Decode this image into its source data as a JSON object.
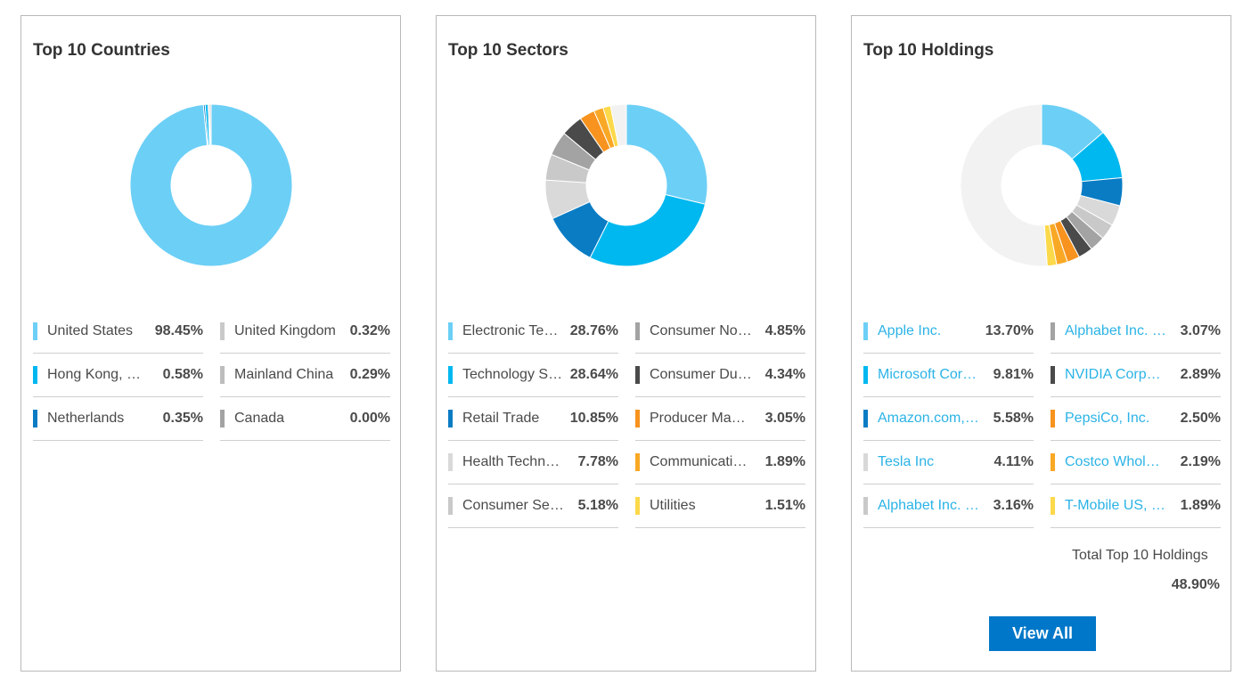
{
  "chart_data": [
    {
      "type": "pie",
      "title": "Top 10 Countries",
      "series": [
        {
          "name": "United States",
          "value": "98.45%",
          "num": 98.45,
          "color": "#6ccff6"
        },
        {
          "name": "United Kingdom",
          "value": "0.32%",
          "num": 0.32,
          "color": "#c9c9c9"
        },
        {
          "name": "Hong Kong, China",
          "value": "0.58%",
          "num": 0.58,
          "color": "#00b8f0"
        },
        {
          "name": "Mainland China",
          "value": "0.29%",
          "num": 0.29,
          "color": "#bdbdbd"
        },
        {
          "name": "Netherlands",
          "value": "0.35%",
          "num": 0.35,
          "color": "#0a7cc4"
        },
        {
          "name": "Canada",
          "value": "0.00%",
          "num": 0.0,
          "color": "#a3a3a3"
        }
      ],
      "chart_order": [
        "United States",
        "Netherlands",
        "Hong Kong, China",
        "Mainland China",
        "United Kingdom",
        "Canada"
      ]
    },
    {
      "type": "pie",
      "title": "Top 10 Sectors",
      "series": [
        {
          "name": "Electronic Technology",
          "value": "28.76%",
          "num": 28.76,
          "color": "#6ccff6"
        },
        {
          "name": "Consumer Non-Durables",
          "value": "4.85%",
          "num": 4.85,
          "color": "#a3a3a3"
        },
        {
          "name": "Technology Services",
          "value": "28.64%",
          "num": 28.64,
          "color": "#00b8f0"
        },
        {
          "name": "Consumer Durables",
          "value": "4.34%",
          "num": 4.34,
          "color": "#4a4a4a"
        },
        {
          "name": "Retail Trade",
          "value": "10.85%",
          "num": 10.85,
          "color": "#0a7cc4"
        },
        {
          "name": "Producer Manufacturing",
          "value": "3.05%",
          "num": 3.05,
          "color": "#f7931e"
        },
        {
          "name": "Health Technology",
          "value": "7.78%",
          "num": 7.78,
          "color": "#d9d9d9"
        },
        {
          "name": "Communications",
          "value": "1.89%",
          "num": 1.89,
          "color": "#f9a825"
        },
        {
          "name": "Consumer Services",
          "value": "5.18%",
          "num": 5.18,
          "color": "#c9c9c9"
        },
        {
          "name": "Utilities",
          "value": "1.51%",
          "num": 1.51,
          "color": "#fcd94a"
        }
      ],
      "chart_order": [
        "Electronic Technology",
        "Technology Services",
        "Retail Trade",
        "Health Technology",
        "Consumer Services",
        "Consumer Non-Durables",
        "Consumer Durables",
        "Producer Manufacturing",
        "Communications",
        "Utilities"
      ],
      "remainder_color": "#f2f2f2"
    },
    {
      "type": "pie",
      "title": "Top 10 Holdings",
      "series": [
        {
          "name": "Apple Inc.",
          "value": "13.70%",
          "num": 13.7,
          "color": "#6ccff6"
        },
        {
          "name": "Alphabet Inc. Class C",
          "value": "3.07%",
          "num": 3.07,
          "color": "#a3a3a3"
        },
        {
          "name": "Microsoft Corporation",
          "value": "9.81%",
          "num": 9.81,
          "color": "#00b8f0"
        },
        {
          "name": "NVIDIA Corporation",
          "value": "2.89%",
          "num": 2.89,
          "color": "#4a4a4a"
        },
        {
          "name": "Amazon.com, Inc.",
          "value": "5.58%",
          "num": 5.58,
          "color": "#0a7cc4"
        },
        {
          "name": "PepsiCo, Inc.",
          "value": "2.50%",
          "num": 2.5,
          "color": "#f7931e"
        },
        {
          "name": "Tesla Inc",
          "value": "4.11%",
          "num": 4.11,
          "color": "#d9d9d9"
        },
        {
          "name": "Costco Wholesale Corporation",
          "value": "2.19%",
          "num": 2.19,
          "color": "#f9a825"
        },
        {
          "name": "Alphabet Inc. Class A",
          "value": "3.16%",
          "num": 3.16,
          "color": "#c9c9c9"
        },
        {
          "name": "T-Mobile US, Inc.",
          "value": "1.89%",
          "num": 1.89,
          "color": "#fcd94a"
        }
      ],
      "chart_order": [
        "Apple Inc.",
        "Microsoft Corporation",
        "Amazon.com, Inc.",
        "Tesla Inc",
        "Alphabet Inc. Class A",
        "Alphabet Inc. Class C",
        "NVIDIA Corporation",
        "PepsiCo, Inc.",
        "Costco Wholesale Corporation",
        "T-Mobile US, Inc."
      ],
      "remainder_color": "#f2f2f2",
      "total_label": "Total Top 10 Holdings",
      "total_value": "48.90%"
    }
  ],
  "view_all_label": "View All"
}
